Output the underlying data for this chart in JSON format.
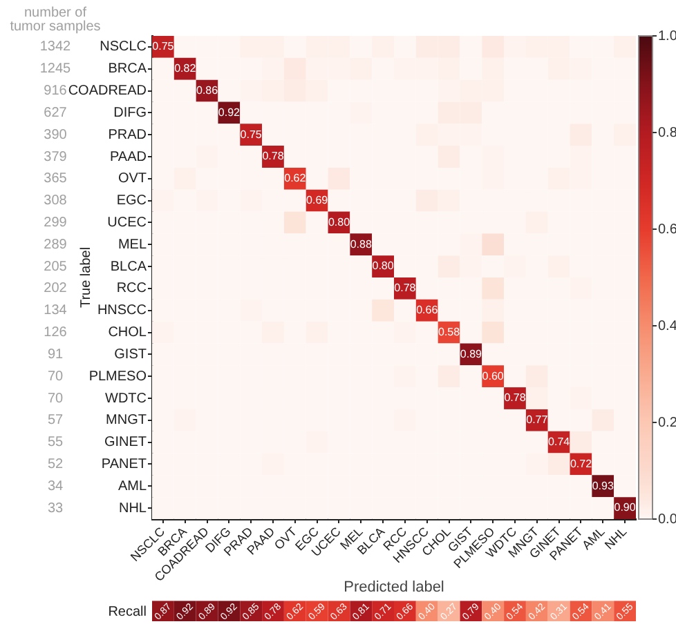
{
  "chart_data": [
    {
      "type": "heatmap",
      "xlabel": "Predicted label",
      "ylabel": "True label",
      "annotations": [
        "number of tumor samples"
      ],
      "categories": [
        "NSCLC",
        "BRCA",
        "COADREAD",
        "DIFG",
        "PRAD",
        "PAAD",
        "OVT",
        "EGC",
        "UCEC",
        "MEL",
        "BLCA",
        "RCC",
        "HNSCC",
        "CHOL",
        "GIST",
        "PLMESO",
        "WDTC",
        "MNGT",
        "GINET",
        "PANET",
        "AML",
        "NHL"
      ],
      "y_categories": [
        "NSCLC",
        "BRCA",
        "COADREAD",
        "DIFG",
        "PRAD",
        "PAAD",
        "OVT",
        "EGC",
        "UCEC",
        "MEL",
        "BLCA",
        "RCC",
        "HNSCC",
        "CHOL",
        "GIST",
        "PLMESO",
        "WDTC",
        "MNGT",
        "GINET",
        "PANET",
        "AML",
        "NHL"
      ],
      "y2_categories": [
        "1342",
        "1245",
        "916",
        "627",
        "390",
        "379",
        "365",
        "308",
        "299",
        "289",
        "205",
        "202",
        "134",
        "126",
        "91",
        "70",
        "70",
        "57",
        "55",
        "52",
        "34",
        "33"
      ],
      "clim": [
        0,
        1
      ],
      "cticks": [
        {
          "value": 0,
          "label": "0.0"
        },
        {
          "value": 0.2,
          "label": "0.2"
        },
        {
          "value": 0.4,
          "label": "0.4"
        },
        {
          "value": 0.6,
          "label": "0.6"
        },
        {
          "value": 0.8,
          "label": "0.8"
        },
        {
          "value": 1,
          "label": "1.0"
        }
      ],
      "cells": [
        [
          0.75,
          0,
          0,
          0,
          0.02,
          0.02,
          0,
          0.02,
          0.02,
          0,
          0.02,
          0,
          0.03,
          0.03,
          0,
          0.04,
          0.01,
          0.02,
          0.02,
          0,
          0,
          0.02
        ],
        [
          0,
          0.82,
          0,
          0,
          0,
          0.01,
          0.04,
          0.01,
          0.01,
          0.02,
          0,
          0.01,
          0.01,
          0.02,
          0,
          0.02,
          0,
          0,
          0.02,
          0.01,
          0,
          0
        ],
        [
          0,
          0,
          0.86,
          0,
          0.01,
          0.02,
          0.03,
          0.02,
          0,
          0,
          0,
          0,
          0,
          0.01,
          0.02,
          0.02,
          0,
          0,
          0,
          0,
          0,
          0
        ],
        [
          0,
          0,
          0,
          0.92,
          0,
          0,
          0,
          0,
          0,
          0.01,
          0,
          0,
          0,
          0.03,
          0.03,
          0,
          0,
          0,
          0,
          0,
          0,
          0
        ],
        [
          0,
          0,
          0,
          0,
          0.75,
          0,
          0,
          0,
          0,
          0,
          0,
          0,
          0.02,
          0.01,
          0.01,
          0,
          0,
          0,
          0,
          0.03,
          0,
          0.02
        ],
        [
          0,
          0,
          0.01,
          0,
          0,
          0.78,
          0,
          0,
          0,
          0,
          0,
          0,
          0,
          0.03,
          0,
          0.01,
          0,
          0,
          0,
          0.01,
          0,
          0
        ],
        [
          0,
          0.02,
          0,
          0,
          0,
          0,
          0.62,
          0,
          0.04,
          0,
          0,
          0,
          0,
          0,
          0,
          0.01,
          0,
          0,
          0.02,
          0.01,
          0,
          0
        ],
        [
          0.01,
          0,
          0.01,
          0,
          0.01,
          0,
          0,
          0.69,
          0,
          0,
          0,
          0,
          0.03,
          0.02,
          0,
          0,
          0,
          0,
          0,
          0,
          0,
          0
        ],
        [
          0,
          0,
          0,
          0,
          0,
          0,
          0.06,
          0,
          0.8,
          0,
          0,
          0,
          0,
          0,
          0,
          0,
          0,
          0.02,
          0,
          0,
          0,
          0
        ],
        [
          0,
          0,
          0,
          0,
          0,
          0,
          0,
          0,
          0,
          0.88,
          0,
          0,
          0,
          0,
          0.01,
          0.08,
          0,
          0,
          0,
          0,
          0,
          0
        ],
        [
          0,
          0,
          0,
          0,
          0,
          0,
          0,
          0,
          0,
          0,
          0.8,
          0,
          0,
          0.03,
          0.01,
          0,
          0.01,
          0,
          0.02,
          0,
          0,
          0
        ],
        [
          0,
          0,
          0,
          0,
          0,
          0,
          0,
          0,
          0,
          0,
          0,
          0.78,
          0,
          0,
          0,
          0.06,
          0,
          0,
          0,
          0.01,
          0,
          0
        ],
        [
          0,
          0,
          0,
          0,
          0.01,
          0,
          0,
          0,
          0,
          0,
          0.05,
          0,
          0.66,
          0,
          0,
          0.02,
          0,
          0,
          0,
          0,
          0,
          0
        ],
        [
          0.01,
          0,
          0,
          0,
          0,
          0.02,
          0,
          0.02,
          0,
          0,
          0,
          0.01,
          0,
          0.58,
          0,
          0.06,
          0,
          0,
          0,
          0,
          0,
          0
        ],
        [
          0,
          0,
          0,
          0,
          0,
          0,
          0,
          0,
          0,
          0,
          0,
          0,
          0,
          0,
          0.89,
          0,
          0,
          0,
          0,
          0,
          0,
          0
        ],
        [
          0,
          0,
          0,
          0,
          0,
          0,
          0,
          0,
          0,
          0,
          0,
          0.01,
          0,
          0.03,
          0,
          0.6,
          0,
          0.03,
          0,
          0,
          0,
          0
        ],
        [
          0,
          0,
          0,
          0,
          0,
          0,
          0,
          0,
          0,
          0,
          0,
          0,
          0,
          0,
          0,
          0,
          0.78,
          0.02,
          0,
          0.01,
          0,
          0
        ],
        [
          0,
          0.01,
          0,
          0,
          0,
          0,
          0,
          0,
          0,
          0,
          0,
          0.01,
          0,
          0,
          0,
          0,
          0,
          0.77,
          0,
          0,
          0.03,
          0
        ],
        [
          0,
          0,
          0,
          0,
          0,
          0,
          0,
          0.01,
          0,
          0,
          0,
          0,
          0,
          0,
          0,
          0,
          0,
          0,
          0.74,
          0.03,
          0,
          0
        ],
        [
          0,
          0,
          0,
          0,
          0,
          0.01,
          0,
          0,
          0,
          0,
          0,
          0,
          0,
          0,
          0,
          0,
          0,
          0.01,
          0.03,
          0.72,
          0,
          0
        ],
        [
          0,
          0,
          0,
          0,
          0,
          0,
          0,
          0,
          0,
          0,
          0,
          0,
          0,
          0,
          0,
          0,
          0,
          0,
          0,
          0,
          0.93,
          0
        ],
        [
          0,
          0,
          0,
          0,
          0,
          0,
          0,
          0,
          0,
          0,
          0,
          0,
          0,
          0,
          0,
          0,
          0,
          0,
          0,
          0,
          0,
          0.9
        ]
      ],
      "cell_labels": [
        [
          "0.75",
          null,
          null,
          null,
          null,
          null,
          null,
          null,
          null,
          null,
          null,
          null,
          null,
          null,
          null,
          null,
          null,
          null,
          null,
          null,
          null,
          null
        ],
        [
          null,
          "0.82",
          null,
          null,
          null,
          null,
          null,
          null,
          null,
          null,
          null,
          null,
          null,
          null,
          null,
          null,
          null,
          null,
          null,
          null,
          null,
          null
        ],
        [
          null,
          null,
          "0.86",
          null,
          null,
          null,
          null,
          null,
          null,
          null,
          null,
          null,
          null,
          null,
          null,
          null,
          null,
          null,
          null,
          null,
          null,
          null
        ],
        [
          null,
          null,
          null,
          "0.92",
          null,
          null,
          null,
          null,
          null,
          null,
          null,
          null,
          null,
          null,
          null,
          null,
          null,
          null,
          null,
          null,
          null,
          null
        ],
        [
          null,
          null,
          null,
          null,
          "0.75",
          null,
          null,
          null,
          null,
          null,
          null,
          null,
          null,
          null,
          null,
          null,
          null,
          null,
          null,
          null,
          null,
          null
        ],
        [
          null,
          null,
          null,
          null,
          null,
          "0.78",
          null,
          null,
          null,
          null,
          null,
          null,
          null,
          null,
          null,
          null,
          null,
          null,
          null,
          null,
          null,
          null
        ],
        [
          null,
          null,
          null,
          null,
          null,
          null,
          "0.62",
          null,
          null,
          null,
          null,
          null,
          null,
          null,
          null,
          null,
          null,
          null,
          null,
          null,
          null,
          null
        ],
        [
          null,
          null,
          null,
          null,
          null,
          null,
          null,
          "0.69",
          null,
          null,
          null,
          null,
          null,
          null,
          null,
          null,
          null,
          null,
          null,
          null,
          null,
          null
        ],
        [
          null,
          null,
          null,
          null,
          null,
          null,
          null,
          null,
          "0.80",
          null,
          null,
          null,
          null,
          null,
          null,
          null,
          null,
          null,
          null,
          null,
          null,
          null
        ],
        [
          null,
          null,
          null,
          null,
          null,
          null,
          null,
          null,
          null,
          "0.88",
          null,
          null,
          null,
          null,
          null,
          null,
          null,
          null,
          null,
          null,
          null,
          null
        ],
        [
          null,
          null,
          null,
          null,
          null,
          null,
          null,
          null,
          null,
          null,
          "0.80",
          null,
          null,
          null,
          null,
          null,
          null,
          null,
          null,
          null,
          null,
          null
        ],
        [
          null,
          null,
          null,
          null,
          null,
          null,
          null,
          null,
          null,
          null,
          null,
          "0.78",
          null,
          null,
          null,
          null,
          null,
          null,
          null,
          null,
          null,
          null
        ],
        [
          null,
          null,
          null,
          null,
          null,
          null,
          null,
          null,
          null,
          null,
          null,
          null,
          "0.66",
          null,
          null,
          null,
          null,
          null,
          null,
          null,
          null,
          null
        ],
        [
          null,
          null,
          null,
          null,
          null,
          null,
          null,
          null,
          null,
          null,
          null,
          null,
          null,
          "0.58",
          null,
          null,
          null,
          null,
          null,
          null,
          null,
          null
        ],
        [
          null,
          null,
          null,
          null,
          null,
          null,
          null,
          null,
          null,
          null,
          null,
          null,
          null,
          null,
          "0.89",
          null,
          null,
          null,
          null,
          null,
          null,
          null
        ],
        [
          null,
          null,
          null,
          null,
          null,
          null,
          null,
          null,
          null,
          null,
          null,
          null,
          null,
          null,
          null,
          "0.60",
          null,
          null,
          null,
          null,
          null,
          null
        ],
        [
          null,
          null,
          null,
          null,
          null,
          null,
          null,
          null,
          null,
          null,
          null,
          null,
          null,
          null,
          null,
          null,
          "0.78",
          null,
          null,
          null,
          null,
          null
        ],
        [
          null,
          null,
          null,
          null,
          null,
          null,
          null,
          null,
          null,
          null,
          null,
          null,
          null,
          null,
          null,
          null,
          null,
          "0.77",
          null,
          null,
          null,
          null
        ],
        [
          null,
          null,
          null,
          null,
          null,
          null,
          null,
          null,
          null,
          null,
          null,
          null,
          null,
          null,
          null,
          null,
          null,
          null,
          "0.74",
          null,
          null,
          null
        ],
        [
          null,
          null,
          null,
          null,
          null,
          null,
          null,
          null,
          null,
          null,
          null,
          null,
          null,
          null,
          null,
          null,
          null,
          null,
          null,
          "0.72",
          null,
          null
        ],
        [
          null,
          null,
          null,
          null,
          null,
          null,
          null,
          null,
          null,
          null,
          null,
          null,
          null,
          null,
          null,
          null,
          null,
          null,
          null,
          null,
          "0.93",
          null
        ],
        [
          null,
          null,
          null,
          null,
          null,
          null,
          null,
          null,
          null,
          null,
          null,
          null,
          null,
          null,
          null,
          null,
          null,
          null,
          null,
          null,
          null,
          "0.90"
        ]
      ]
    },
    {
      "type": "heatmap",
      "tick_labels": "y",
      "categories": [
        null,
        null,
        null,
        null,
        null,
        null,
        null,
        null,
        null,
        null,
        null,
        null,
        null,
        null,
        null,
        null,
        null,
        null,
        null,
        null,
        null,
        null
      ],
      "y_categories": [
        "Recall"
      ],
      "cells": [
        [
          0.87,
          0.92,
          0.89,
          0.92,
          0.85,
          0.78,
          0.62,
          0.59,
          0.63,
          0.81,
          0.71,
          0.66,
          0.4,
          0.27,
          0.79,
          0.4,
          0.54,
          0.42,
          0.31,
          0.54,
          0.41,
          0.55
        ]
      ],
      "cell_labels": [
        [
          "0.87",
          "0.92",
          "0.89",
          "0.92",
          "0.85",
          "0.78",
          "0.62",
          "0.59",
          "0.63",
          "0.81",
          "0.71",
          "0.66",
          "0.40",
          "0.27",
          "0.79",
          "0.40",
          "0.54",
          "0.42",
          "0.31",
          "0.54",
          "0.41",
          "0.55"
        ]
      ]
    }
  ]
}
